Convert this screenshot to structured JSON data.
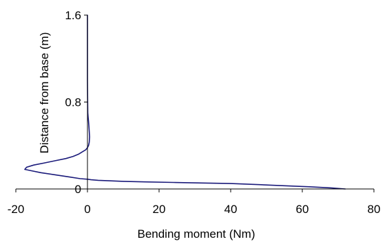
{
  "chart_data": {
    "type": "line",
    "title": "",
    "xlabel": "Bending moment (Nm)",
    "ylabel": "Distance from base (m)",
    "xlim": [
      -20,
      80
    ],
    "ylim": [
      0,
      1.6
    ],
    "xticks": [
      -20,
      0,
      20,
      40,
      60,
      80
    ],
    "xtick_labels": [
      "-20",
      "0",
      "20",
      "40",
      "60",
      "80"
    ],
    "yticks": [
      0,
      0.8,
      1.6
    ],
    "ytick_labels": [
      "0",
      "0.8",
      "1.6"
    ],
    "grid": false,
    "legend": "none",
    "line_color": "#1a1a7a",
    "series": [
      {
        "x": [
          72,
          68,
          62,
          55,
          48,
          40,
          32,
          24,
          16,
          10,
          6,
          3,
          1,
          0,
          -2,
          -5,
          -9,
          -13,
          -16,
          -17.5,
          -17,
          -15,
          -12,
          -9,
          -6,
          -4,
          -2.5,
          -1.5,
          -0.5,
          0,
          0.3,
          0.5,
          0.6,
          0.5,
          0.4,
          0.3,
          0.2,
          0.1,
          0.05,
          0,
          0,
          0
        ],
        "y": [
          0,
          0.01,
          0.02,
          0.03,
          0.04,
          0.05,
          0.055,
          0.06,
          0.065,
          0.07,
          0.075,
          0.08,
          0.085,
          0.09,
          0.095,
          0.11,
          0.13,
          0.15,
          0.17,
          0.18,
          0.2,
          0.22,
          0.24,
          0.26,
          0.28,
          0.3,
          0.32,
          0.34,
          0.36,
          0.38,
          0.4,
          0.43,
          0.48,
          0.53,
          0.58,
          0.62,
          0.66,
          0.7,
          0.8,
          1.0,
          1.3,
          1.6
        ]
      }
    ]
  }
}
